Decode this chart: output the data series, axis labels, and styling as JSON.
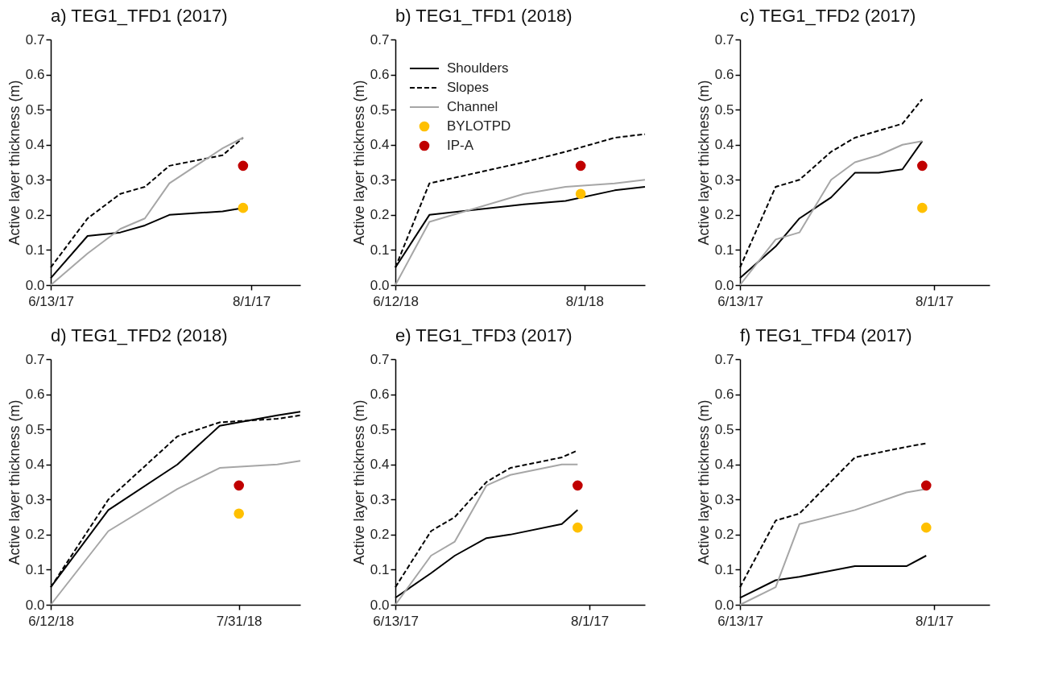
{
  "chart_data": [
    {
      "type": "line",
      "title": "a) TEG1_TFD1 (2017)",
      "ylabel": "Active layer thickness (m)",
      "xlim": [
        "2017-06-13",
        "2017-08-13"
      ],
      "xticks": [
        {
          "value": "2017-06-13",
          "label": "6/13/17"
        },
        {
          "value": "2017-08-01",
          "label": "8/1/17"
        }
      ],
      "ylim": [
        0,
        0.7
      ],
      "yticks": [
        {
          "value": 0,
          "label": "0.0"
        },
        {
          "value": 0.1,
          "label": "0.1"
        },
        {
          "value": 0.2,
          "label": "0.2"
        },
        {
          "value": 0.3,
          "label": "0.3"
        },
        {
          "value": 0.4,
          "label": "0.4"
        },
        {
          "value": 0.5,
          "label": "0.5"
        },
        {
          "value": 0.6,
          "label": "0.6"
        },
        {
          "value": 0.7,
          "label": "0.7"
        }
      ],
      "series": [
        {
          "type": "line",
          "line_style": "solid",
          "color": "#000000",
          "x": [
            "2017-06-13",
            "2017-06-22",
            "2017-06-30",
            "2017-07-06",
            "2017-07-12",
            "2017-07-25",
            "2017-07-30"
          ],
          "values": [
            0.02,
            0.14,
            0.15,
            0.17,
            0.2,
            0.21,
            0.22
          ]
        },
        {
          "type": "line",
          "line_style": "dashed",
          "color": "#000000",
          "x": [
            "2017-06-13",
            "2017-06-22",
            "2017-06-30",
            "2017-07-06",
            "2017-07-12",
            "2017-07-25",
            "2017-07-30"
          ],
          "values": [
            0.05,
            0.19,
            0.26,
            0.28,
            0.34,
            0.37,
            0.42
          ]
        },
        {
          "type": "line",
          "line_style": "solid",
          "color": "#a6a6a6",
          "x": [
            "2017-06-13",
            "2017-06-22",
            "2017-06-30",
            "2017-07-06",
            "2017-07-12",
            "2017-07-25",
            "2017-07-30"
          ],
          "values": [
            0,
            0.09,
            0.16,
            0.19,
            0.29,
            0.39,
            0.42
          ]
        },
        {
          "type": "scatter",
          "marker": "circle",
          "color": "#ffc000",
          "x": [
            "2017-07-30"
          ],
          "values": [
            0.22
          ]
        },
        {
          "type": "scatter",
          "marker": "circle",
          "color": "#c00000",
          "x": [
            "2017-07-30"
          ],
          "values": [
            0.34
          ]
        }
      ]
    },
    {
      "type": "line",
      "title": "b) TEG1_TFD1 (2018)",
      "ylabel": "Active layer thickness (m)",
      "xlim": [
        "2018-06-12",
        "2018-08-17"
      ],
      "xticks": [
        {
          "value": "2018-06-12",
          "label": "6/12/18"
        },
        {
          "value": "2018-08-01",
          "label": "8/1/18"
        }
      ],
      "ylim": [
        0,
        0.7
      ],
      "yticks": [
        {
          "value": 0,
          "label": "0.0"
        },
        {
          "value": 0.1,
          "label": "0.1"
        },
        {
          "value": 0.2,
          "label": "0.2"
        },
        {
          "value": 0.3,
          "label": "0.3"
        },
        {
          "value": 0.4,
          "label": "0.4"
        },
        {
          "value": 0.5,
          "label": "0.5"
        },
        {
          "value": 0.6,
          "label": "0.6"
        },
        {
          "value": 0.7,
          "label": "0.7"
        }
      ],
      "legend": "top left",
      "series": [
        {
          "type": "line",
          "name": "Shoulders",
          "line_style": "solid",
          "color": "#000000",
          "x": [
            "2018-06-12",
            "2018-06-21",
            "2018-07-16",
            "2018-07-27",
            "2018-08-09",
            "2018-08-17"
          ],
          "values": [
            0.05,
            0.2,
            0.23,
            0.24,
            0.27,
            0.28
          ]
        },
        {
          "type": "line",
          "name": "Slopes",
          "line_style": "dashed",
          "color": "#000000",
          "x": [
            "2018-06-12",
            "2018-06-21",
            "2018-07-16",
            "2018-07-27",
            "2018-08-09",
            "2018-08-17"
          ],
          "values": [
            0.05,
            0.29,
            0.35,
            0.38,
            0.42,
            0.43
          ]
        },
        {
          "type": "line",
          "name": "Channel",
          "line_style": "solid",
          "color": "#a6a6a6",
          "x": [
            "2018-06-12",
            "2018-06-21",
            "2018-07-16",
            "2018-07-27",
            "2018-08-09",
            "2018-08-17"
          ],
          "values": [
            0,
            0.18,
            0.26,
            0.28,
            0.29,
            0.3
          ]
        },
        {
          "type": "scatter",
          "name": "BYLOTPD",
          "marker": "circle",
          "color": "#ffc000",
          "x": [
            "2018-07-31"
          ],
          "values": [
            0.26
          ]
        },
        {
          "type": "scatter",
          "name": "IP-A",
          "marker": "circle",
          "color": "#c00000",
          "x": [
            "2018-07-31"
          ],
          "values": [
            0.34
          ]
        }
      ]
    },
    {
      "type": "line",
      "title": "c) TEG1_TFD2 (2017)",
      "ylabel": "Active layer thickness (m)",
      "xlim": [
        "2017-06-13",
        "2017-08-15"
      ],
      "xticks": [
        {
          "value": "2017-06-13",
          "label": "6/13/17"
        },
        {
          "value": "2017-08-01",
          "label": "8/1/17"
        }
      ],
      "ylim": [
        0,
        0.7
      ],
      "yticks": [
        {
          "value": 0,
          "label": "0.0"
        },
        {
          "value": 0.1,
          "label": "0.1"
        },
        {
          "value": 0.2,
          "label": "0.2"
        },
        {
          "value": 0.3,
          "label": "0.3"
        },
        {
          "value": 0.4,
          "label": "0.4"
        },
        {
          "value": 0.5,
          "label": "0.5"
        },
        {
          "value": 0.6,
          "label": "0.6"
        },
        {
          "value": 0.7,
          "label": "0.7"
        }
      ],
      "series": [
        {
          "type": "line",
          "line_style": "solid",
          "color": "#000000",
          "x": [
            "2017-06-13",
            "2017-06-22",
            "2017-06-28",
            "2017-07-06",
            "2017-07-12",
            "2017-07-18",
            "2017-07-24",
            "2017-07-29"
          ],
          "values": [
            0.02,
            0.11,
            0.19,
            0.25,
            0.32,
            0.32,
            0.33,
            0.41
          ]
        },
        {
          "type": "line",
          "line_style": "dashed",
          "color": "#000000",
          "x": [
            "2017-06-13",
            "2017-06-22",
            "2017-06-28",
            "2017-07-06",
            "2017-07-12",
            "2017-07-18",
            "2017-07-24",
            "2017-07-29"
          ],
          "values": [
            0.05,
            0.28,
            0.3,
            0.38,
            0.42,
            0.44,
            0.46,
            0.53
          ]
        },
        {
          "type": "line",
          "line_style": "solid",
          "color": "#a6a6a6",
          "x": [
            "2017-06-13",
            "2017-06-22",
            "2017-06-28",
            "2017-07-06",
            "2017-07-12",
            "2017-07-18",
            "2017-07-24",
            "2017-07-29"
          ],
          "values": [
            0,
            0.13,
            0.15,
            0.3,
            0.35,
            0.37,
            0.4,
            0.41
          ]
        },
        {
          "type": "scatter",
          "marker": "circle",
          "color": "#ffc000",
          "x": [
            "2017-07-29"
          ],
          "values": [
            0.22
          ]
        },
        {
          "type": "scatter",
          "marker": "circle",
          "color": "#c00000",
          "x": [
            "2017-07-29"
          ],
          "values": [
            0.34
          ]
        }
      ]
    },
    {
      "type": "line",
      "title": "d) TEG1_TFD2 (2018)",
      "ylabel": "Active layer thickness (m)",
      "xlim": [
        "2018-06-12",
        "2018-08-16"
      ],
      "xticks": [
        {
          "value": "2018-06-12",
          "label": "6/12/18"
        },
        {
          "value": "2018-07-31",
          "label": "7/31/18"
        }
      ],
      "ylim": [
        0,
        0.7
      ],
      "yticks": [
        {
          "value": 0,
          "label": "0.0"
        },
        {
          "value": 0.1,
          "label": "0.1"
        },
        {
          "value": 0.2,
          "label": "0.2"
        },
        {
          "value": 0.3,
          "label": "0.3"
        },
        {
          "value": 0.4,
          "label": "0.4"
        },
        {
          "value": 0.5,
          "label": "0.5"
        },
        {
          "value": 0.6,
          "label": "0.6"
        },
        {
          "value": 0.7,
          "label": "0.7"
        }
      ],
      "series": [
        {
          "type": "line",
          "line_style": "solid",
          "color": "#000000",
          "x": [
            "2018-06-12",
            "2018-06-27",
            "2018-07-15",
            "2018-07-26",
            "2018-08-10",
            "2018-08-16"
          ],
          "values": [
            0.05,
            0.27,
            0.4,
            0.51,
            0.54,
            0.55
          ]
        },
        {
          "type": "line",
          "line_style": "dashed",
          "color": "#000000",
          "x": [
            "2018-06-12",
            "2018-06-27",
            "2018-07-15",
            "2018-07-26",
            "2018-08-10",
            "2018-08-16"
          ],
          "values": [
            0.05,
            0.3,
            0.48,
            0.52,
            0.53,
            0.54
          ]
        },
        {
          "type": "line",
          "line_style": "solid",
          "color": "#a6a6a6",
          "x": [
            "2018-06-12",
            "2018-06-27",
            "2018-07-15",
            "2018-07-26",
            "2018-08-10",
            "2018-08-16"
          ],
          "values": [
            0,
            0.21,
            0.33,
            0.39,
            0.4,
            0.41
          ]
        },
        {
          "type": "scatter",
          "marker": "circle",
          "color": "#ffc000",
          "x": [
            "2018-07-31"
          ],
          "values": [
            0.26
          ]
        },
        {
          "type": "scatter",
          "marker": "circle",
          "color": "#c00000",
          "x": [
            "2018-07-31"
          ],
          "values": [
            0.34
          ]
        }
      ]
    },
    {
      "type": "line",
      "title": "e) TEG1_TFD3 (2017)",
      "ylabel": "Active layer thickness (m)",
      "xlim": [
        "2017-06-13",
        "2017-08-15"
      ],
      "xticks": [
        {
          "value": "2017-06-13",
          "label": "6/13/17"
        },
        {
          "value": "2017-08-01",
          "label": "8/1/17"
        }
      ],
      "ylim": [
        0,
        0.7
      ],
      "yticks": [
        {
          "value": 0,
          "label": "0.0"
        },
        {
          "value": 0.1,
          "label": "0.1"
        },
        {
          "value": 0.2,
          "label": "0.2"
        },
        {
          "value": 0.3,
          "label": "0.3"
        },
        {
          "value": 0.4,
          "label": "0.4"
        },
        {
          "value": 0.5,
          "label": "0.5"
        },
        {
          "value": 0.6,
          "label": "0.6"
        },
        {
          "value": 0.7,
          "label": "0.7"
        }
      ],
      "series": [
        {
          "type": "line",
          "line_style": "solid",
          "color": "#000000",
          "x": [
            "2017-06-13",
            "2017-06-22",
            "2017-06-28",
            "2017-07-06",
            "2017-07-12",
            "2017-07-25",
            "2017-07-29"
          ],
          "values": [
            0.02,
            0.09,
            0.14,
            0.19,
            0.2,
            0.23,
            0.27
          ]
        },
        {
          "type": "line",
          "line_style": "dashed",
          "color": "#000000",
          "x": [
            "2017-06-13",
            "2017-06-22",
            "2017-06-28",
            "2017-07-06",
            "2017-07-12",
            "2017-07-25",
            "2017-07-29"
          ],
          "values": [
            0.05,
            0.21,
            0.25,
            0.35,
            0.39,
            0.42,
            0.44
          ]
        },
        {
          "type": "line",
          "line_style": "solid",
          "color": "#a6a6a6",
          "x": [
            "2017-06-13",
            "2017-06-22",
            "2017-06-28",
            "2017-07-06",
            "2017-07-12",
            "2017-07-25",
            "2017-07-29"
          ],
          "values": [
            0,
            0.14,
            0.18,
            0.34,
            0.37,
            0.4,
            0.4
          ]
        },
        {
          "type": "scatter",
          "marker": "circle",
          "color": "#ffc000",
          "x": [
            "2017-07-29"
          ],
          "values": [
            0.22
          ]
        },
        {
          "type": "scatter",
          "marker": "circle",
          "color": "#c00000",
          "x": [
            "2017-07-29"
          ],
          "values": [
            0.34
          ]
        }
      ]
    },
    {
      "type": "line",
      "title": "f) TEG1_TFD4 (2017)",
      "ylabel": "Active layer thickness (m)",
      "xlim": [
        "2017-06-13",
        "2017-08-15"
      ],
      "xticks": [
        {
          "value": "2017-06-13",
          "label": "6/13/17"
        },
        {
          "value": "2017-08-01",
          "label": "8/1/17"
        }
      ],
      "ylim": [
        0,
        0.7
      ],
      "yticks": [
        {
          "value": 0,
          "label": "0.0"
        },
        {
          "value": 0.1,
          "label": "0.1"
        },
        {
          "value": 0.2,
          "label": "0.2"
        },
        {
          "value": 0.3,
          "label": "0.3"
        },
        {
          "value": 0.4,
          "label": "0.4"
        },
        {
          "value": 0.5,
          "label": "0.5"
        },
        {
          "value": 0.6,
          "label": "0.6"
        },
        {
          "value": 0.7,
          "label": "0.7"
        }
      ],
      "series": [
        {
          "type": "line",
          "line_style": "solid",
          "color": "#000000",
          "x": [
            "2017-06-13",
            "2017-06-22",
            "2017-06-28",
            "2017-07-12",
            "2017-07-25",
            "2017-07-30"
          ],
          "values": [
            0.02,
            0.07,
            0.08,
            0.11,
            0.11,
            0.14
          ]
        },
        {
          "type": "line",
          "line_style": "dashed",
          "color": "#000000",
          "x": [
            "2017-06-13",
            "2017-06-22",
            "2017-06-28",
            "2017-07-12",
            "2017-07-25",
            "2017-07-30"
          ],
          "values": [
            0.05,
            0.24,
            0.26,
            0.42,
            0.45,
            0.46
          ]
        },
        {
          "type": "line",
          "line_style": "solid",
          "color": "#a6a6a6",
          "x": [
            "2017-06-13",
            "2017-06-22",
            "2017-06-28",
            "2017-07-12",
            "2017-07-25",
            "2017-07-30"
          ],
          "values": [
            0,
            0.05,
            0.23,
            0.27,
            0.32,
            0.33
          ]
        },
        {
          "type": "scatter",
          "marker": "circle",
          "color": "#ffc000",
          "x": [
            "2017-07-30"
          ],
          "values": [
            0.22
          ]
        },
        {
          "type": "scatter",
          "marker": "circle",
          "color": "#c00000",
          "x": [
            "2017-07-30"
          ],
          "values": [
            0.34
          ]
        }
      ]
    }
  ]
}
